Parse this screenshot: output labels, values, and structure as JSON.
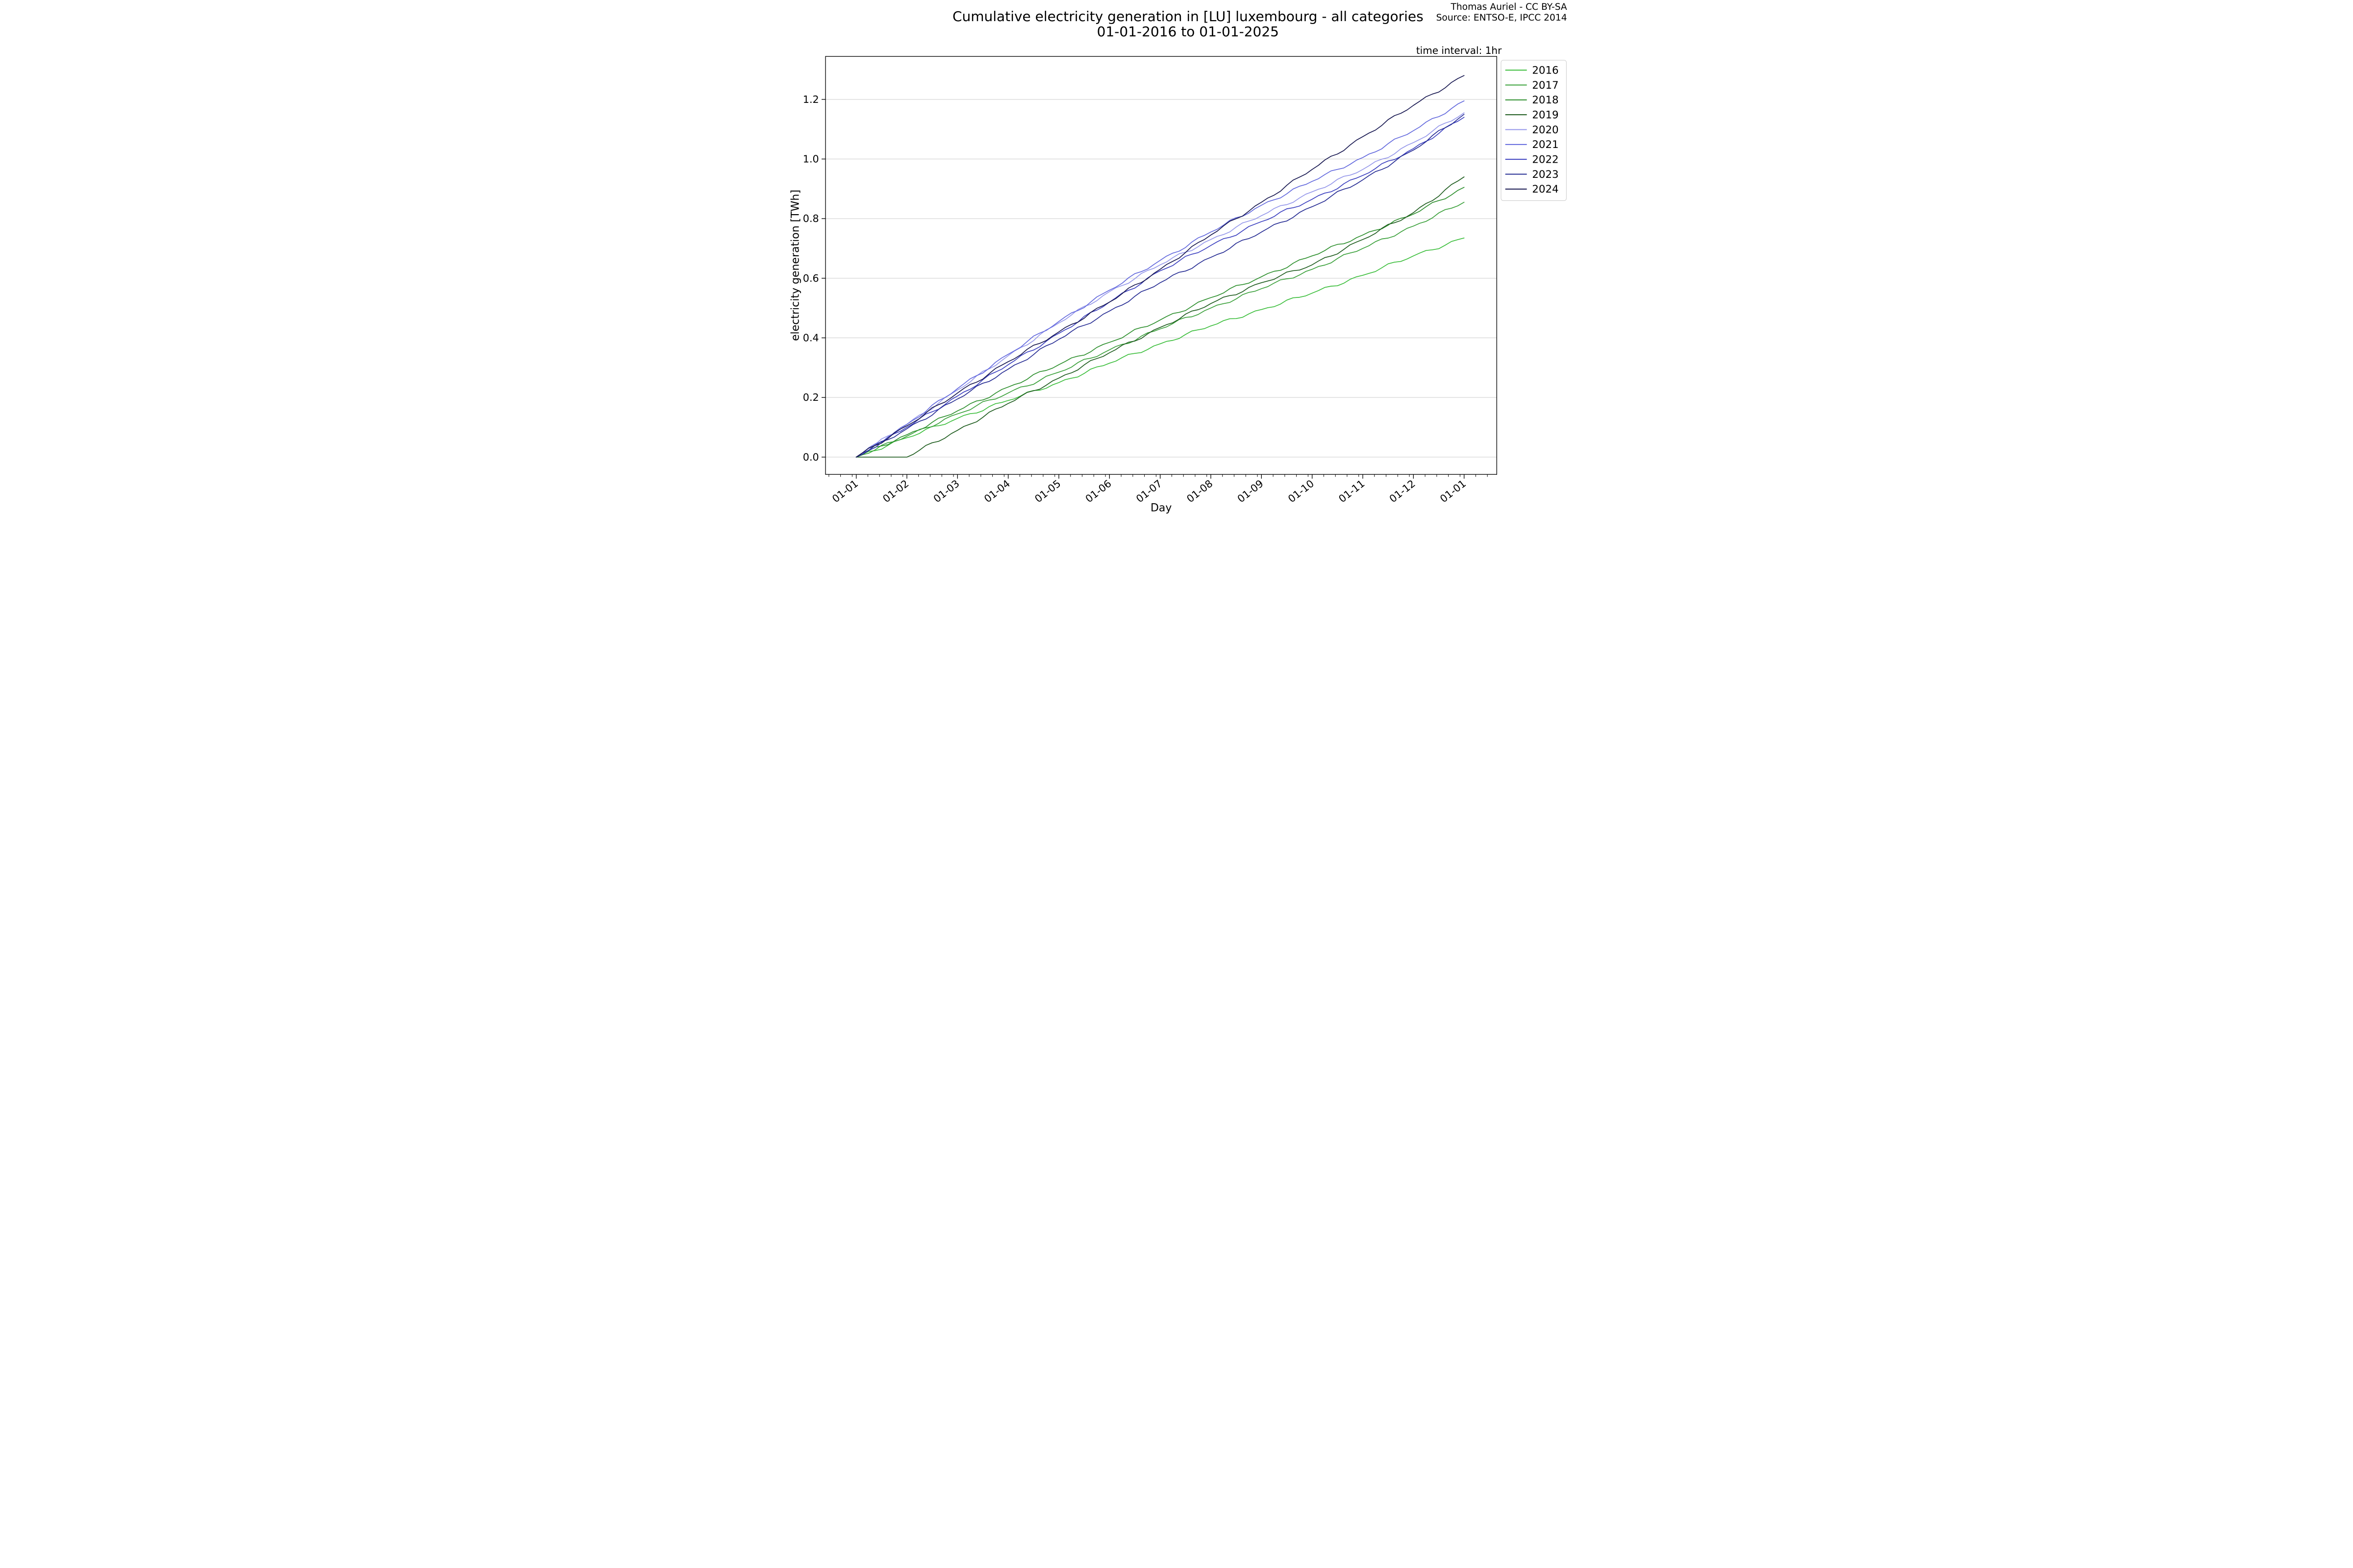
{
  "header": {
    "title_line1": "Cumulative electricity generation in [LU] luxembourg - all categories",
    "title_line2": "01-01-2016 to 01-01-2025",
    "attribution_line1": "Thomas Auriel - CC BY-SA",
    "attribution_line2": "Source: ENTSO-E, IPCC 2014",
    "time_interval_label": "time interval: 1hr"
  },
  "chart_data": {
    "type": "line",
    "title": "Cumulative electricity generation in [LU] luxembourg - all categories 01-01-2016 to 01-01-2025",
    "xlabel": "Day",
    "ylabel": "electricity generation [TWh]",
    "units": "TWh",
    "time_interval": "1hr",
    "grid": "horizontal",
    "legend_position": "outside-right",
    "x_tick_labels": [
      "01-01",
      "01-02",
      "01-03",
      "01-04",
      "01-05",
      "01-06",
      "01-07",
      "01-08",
      "01-09",
      "01-10",
      "01-11",
      "01-12",
      "01-01"
    ],
    "y_tick_values": [
      0.0,
      0.2,
      0.4,
      0.6,
      0.8,
      1.0,
      1.2
    ],
    "y_tick_labels": [
      "0.0",
      "0.2",
      "0.4",
      "0.6",
      "0.8",
      "1.0",
      "1.2"
    ],
    "ylim": [
      -0.06,
      1.345
    ],
    "x_months_range": [
      -0.6,
      12.65
    ],
    "series_note": "monthly_cumulative_twh = cumulative generation sampled at the 1st of each month, Jan 1 through Jan 1 of next year (13 points)",
    "series": [
      {
        "name": "2016",
        "color": "#3cbe3c",
        "final_twh": 0.735,
        "monthly_cumulative_twh": [
          0,
          0.065,
          0.13,
          0.19,
          0.25,
          0.315,
          0.38,
          0.44,
          0.495,
          0.55,
          0.61,
          0.675,
          0.735
        ]
      },
      {
        "name": "2017",
        "color": "#3aa03a",
        "final_twh": 0.855,
        "monthly_cumulative_twh": [
          0,
          0.07,
          0.145,
          0.215,
          0.285,
          0.36,
          0.43,
          0.5,
          0.565,
          0.63,
          0.7,
          0.775,
          0.855
        ]
      },
      {
        "name": "2018",
        "color": "#2d8f2d",
        "final_twh": 0.905,
        "monthly_cumulative_twh": [
          0,
          0.075,
          0.155,
          0.235,
          0.31,
          0.385,
          0.46,
          0.535,
          0.605,
          0.675,
          0.745,
          0.815,
          0.905
        ]
      },
      {
        "name": "2019",
        "color": "#1e5c1e",
        "final_twh": 0.94,
        "monthly_cumulative_twh": [
          0,
          0.0,
          0.09,
          0.18,
          0.265,
          0.35,
          0.435,
          0.515,
          0.585,
          0.645,
          0.73,
          0.82,
          0.94
        ]
      },
      {
        "name": "2020",
        "color": "#9597ea",
        "final_twh": 1.155,
        "monthly_cumulative_twh": [
          0,
          0.11,
          0.225,
          0.34,
          0.45,
          0.555,
          0.645,
          0.73,
          0.81,
          0.89,
          0.965,
          1.055,
          1.155
        ]
      },
      {
        "name": "2021",
        "color": "#6268dd",
        "final_twh": 1.195,
        "monthly_cumulative_twh": [
          0,
          0.11,
          0.23,
          0.345,
          0.455,
          0.56,
          0.66,
          0.755,
          0.845,
          0.925,
          1.005,
          1.095,
          1.195
        ]
      },
      {
        "name": "2022",
        "color": "#3c40c0",
        "final_twh": 1.14,
        "monthly_cumulative_twh": [
          0,
          0.1,
          0.205,
          0.31,
          0.415,
          0.52,
          0.625,
          0.71,
          0.79,
          0.865,
          0.945,
          1.035,
          1.14
        ]
      },
      {
        "name": "2023",
        "color": "#262c93",
        "final_twh": 1.15,
        "monthly_cumulative_twh": [
          0,
          0.095,
          0.195,
          0.295,
          0.395,
          0.49,
          0.585,
          0.67,
          0.755,
          0.84,
          0.93,
          1.03,
          1.15
        ]
      },
      {
        "name": "2024",
        "color": "#171750",
        "final_twh": 1.28,
        "monthly_cumulative_twh": [
          0,
          0.105,
          0.215,
          0.32,
          0.42,
          0.52,
          0.63,
          0.745,
          0.855,
          0.965,
          1.075,
          1.18,
          1.28
        ]
      }
    ]
  }
}
